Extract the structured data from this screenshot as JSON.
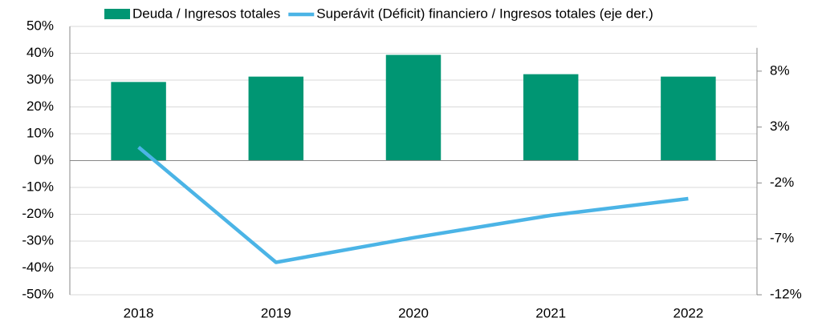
{
  "chart_data": {
    "type": "bar-line",
    "categories": [
      "2018",
      "2019",
      "2020",
      "2021",
      "2022"
    ],
    "series": [
      {
        "name": "Deuda / Ingresos totales",
        "type": "bar",
        "color": "#009673",
        "values": [
          29.3,
          31.3,
          39.4,
          32.2,
          31.3
        ]
      },
      {
        "name": "Superávit (Déficit) financiero / Ingresos totales (eje der.)",
        "type": "line",
        "axis": "y2",
        "color": "#4bb4e6",
        "values": [
          1.2,
          -9.1,
          -6.9,
          -4.9,
          -3.4
        ]
      }
    ],
    "ylim": [
      -50,
      50
    ],
    "yticks": [
      {
        "value": -50,
        "label": "-50%"
      },
      {
        "value": -40,
        "label": "-40%"
      },
      {
        "value": -30,
        "label": "-30%"
      },
      {
        "value": -20,
        "label": "-20%"
      },
      {
        "value": -10,
        "label": "-10%"
      },
      {
        "value": 0,
        "label": "0%"
      },
      {
        "value": 10,
        "label": "10%"
      },
      {
        "value": 20,
        "label": "20%"
      },
      {
        "value": 30,
        "label": "30%"
      },
      {
        "value": 40,
        "label": "40%"
      },
      {
        "value": 50,
        "label": "50%"
      }
    ],
    "y2lim": [
      -12,
      12
    ],
    "y2ticks": [
      {
        "value": -12,
        "label": "-12%"
      },
      {
        "value": -7,
        "label": "-7%"
      },
      {
        "value": -2,
        "label": "-2%"
      },
      {
        "value": 3,
        "label": "3%"
      },
      {
        "value": 8,
        "label": "8%"
      }
    ],
    "grid": true,
    "legend": "top"
  }
}
